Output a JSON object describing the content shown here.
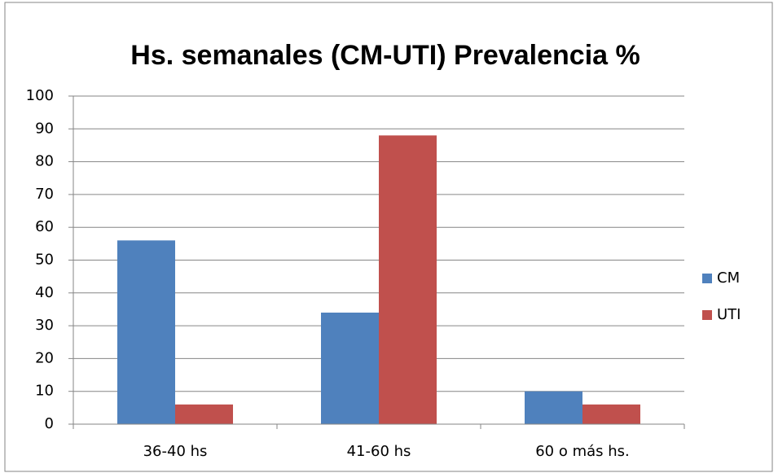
{
  "chart_data": {
    "type": "bar",
    "title": "Hs. semanales (CM-UTI) Prevalencia %",
    "categories": [
      "36-40 hs",
      "41-60 hs",
      "60 o más hs."
    ],
    "series": [
      {
        "name": "CM",
        "color": "#4f81bd",
        "values": [
          56,
          34,
          10
        ]
      },
      {
        "name": "UTI",
        "color": "#c0504d",
        "values": [
          6,
          88,
          6
        ]
      }
    ],
    "ylim": [
      0,
      100
    ],
    "yticks": [
      0,
      10,
      20,
      30,
      40,
      50,
      60,
      70,
      80,
      90,
      100
    ],
    "grid": true,
    "legend": "right"
  }
}
